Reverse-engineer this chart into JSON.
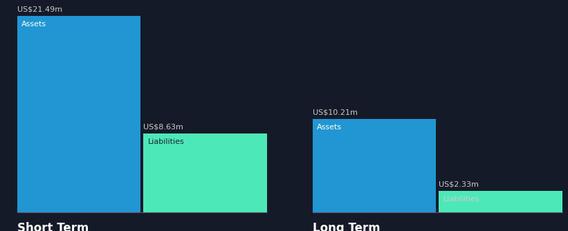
{
  "background_color": "#151a28",
  "groups": [
    {
      "label": "Short Term",
      "bars": [
        {
          "name": "Assets",
          "value": 21.49,
          "color": "#2196d3",
          "inner_label": "Assets",
          "inner_label_color": "#ffffff",
          "value_label": "US$21.49m"
        },
        {
          "name": "Liabilities",
          "value": 8.63,
          "color": "#4de8b8",
          "inner_label": "Liabilities",
          "inner_label_color": "#1a2535",
          "value_label": "US$8.63m"
        }
      ]
    },
    {
      "label": "Long Term",
      "bars": [
        {
          "name": "Assets",
          "value": 10.21,
          "color": "#2196d3",
          "inner_label": "Assets",
          "inner_label_color": "#ffffff",
          "value_label": "US$10.21m"
        },
        {
          "name": "Liabilities",
          "value": 2.33,
          "color": "#4de8b8",
          "inner_label": "Liabilities",
          "inner_label_color": "#cccccc",
          "value_label": "US$2.33m"
        }
      ]
    }
  ],
  "max_value": 21.49,
  "text_color": "#ffffff",
  "value_label_color": "#cccccc",
  "group_label_fontsize": 12,
  "value_label_fontsize": 8,
  "inner_label_fontsize": 8,
  "baseline_color": "#555566"
}
